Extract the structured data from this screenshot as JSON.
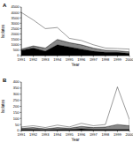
{
  "chart_data": [
    {
      "type": "area",
      "title": "A",
      "stacked": true,
      "x_label": "Year",
      "y_label": "Isolates",
      "categories": [
        "1991",
        "1992",
        "1993",
        "1994",
        "1995",
        "1996",
        "1997",
        "1998",
        "1999",
        "2000"
      ],
      "ylim": [
        0,
        4500
      ],
      "yticks": [
        0,
        500,
        1000,
        1500,
        2000,
        2500,
        3000,
        3500,
        4000,
        4500
      ],
      "series": [
        {
          "color": "#000000",
          "values": [
            500,
            700,
            400,
            1000,
            800,
            600,
            400,
            300,
            300,
            200
          ]
        },
        {
          "color": "#888888",
          "values": [
            100,
            200,
            300,
            500,
            400,
            400,
            300,
            200,
            150,
            150
          ]
        },
        {
          "color": "#ffffff",
          "values": [
            3400,
            2400,
            1800,
            1100,
            400,
            400,
            300,
            200,
            200,
            250
          ]
        }
      ]
    },
    {
      "type": "area",
      "title": "B",
      "stacked": true,
      "x_label": "Year",
      "y_label": "Isolates",
      "categories": [
        "1991",
        "1992",
        "1993",
        "1994",
        "1995",
        "1996",
        "1997",
        "1998",
        "1999",
        "2000"
      ],
      "ylim": [
        0,
        400
      ],
      "yticks": [
        0,
        50,
        100,
        150,
        200,
        250,
        300,
        350,
        400
      ],
      "series": [
        {
          "color": "#000000",
          "values": [
            10,
            10,
            5,
            10,
            10,
            15,
            10,
            10,
            10,
            10
          ]
        },
        {
          "color": "#888888",
          "values": [
            10,
            15,
            10,
            15,
            10,
            20,
            15,
            20,
            40,
            30
          ]
        },
        {
          "color": "#ffffff",
          "values": [
            10,
            15,
            10,
            20,
            10,
            25,
            15,
            20,
            310,
            50
          ]
        }
      ]
    }
  ]
}
